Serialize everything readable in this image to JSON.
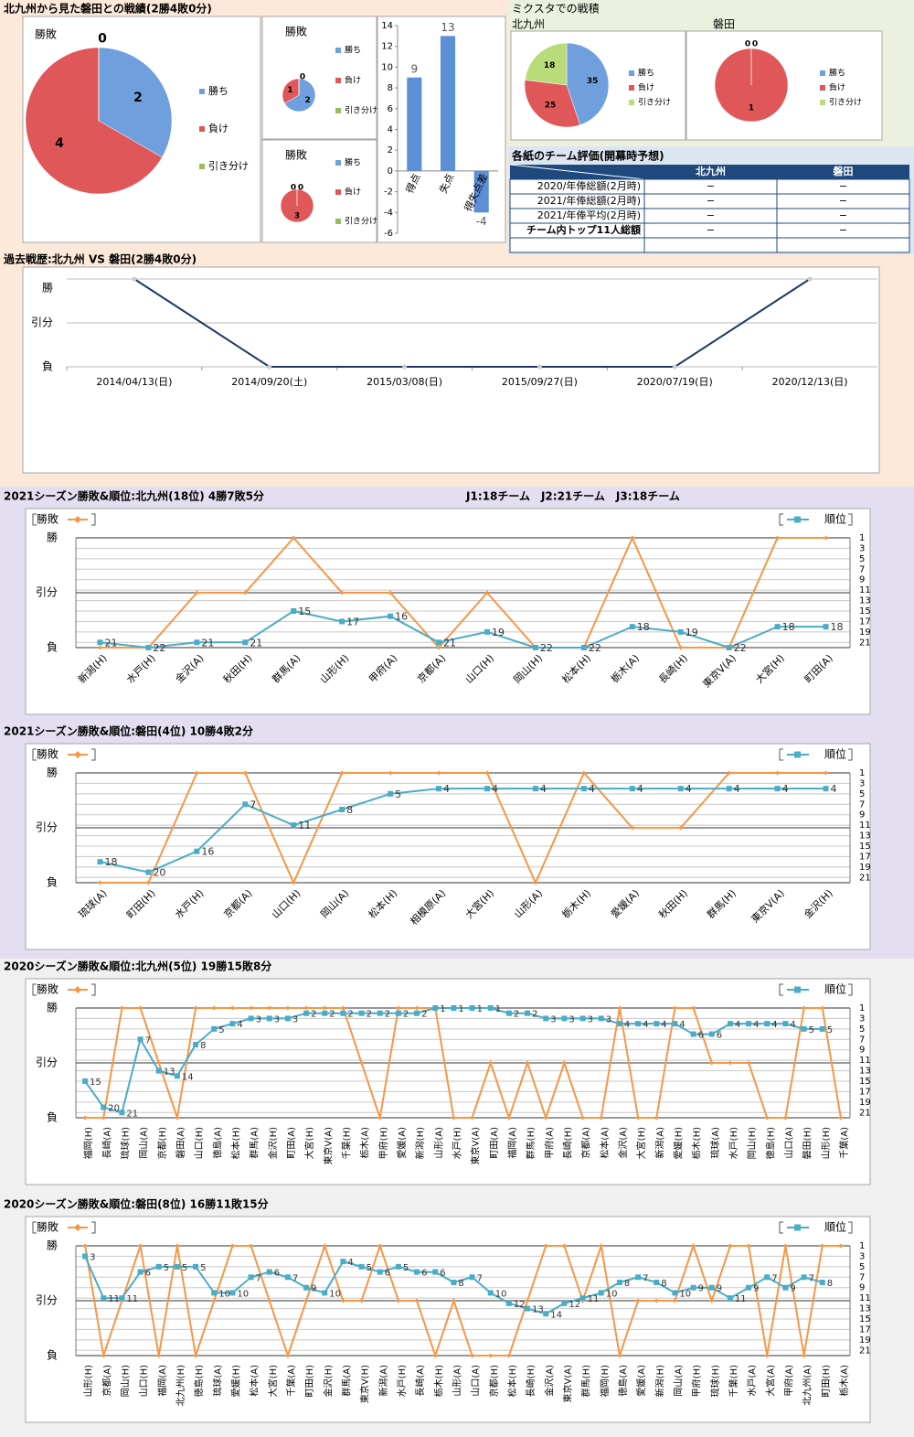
{
  "sections": {
    "h2h": "北九州から見た磐田との戦績(2勝4敗0分)",
    "mixta": "ミクスタでの戦積",
    "note": "J1:18チーム　J2:21チーム　J3:18チーム"
  },
  "table": {
    "title": "各紙のチーム評価(開幕時予想)",
    "columns": [
      "北九州",
      "磐田"
    ],
    "rows": [
      {
        "label": "2020/年俸総額(2月時)",
        "cells": [
          "−",
          "−"
        ]
      },
      {
        "label": "2021/年俸総額(2月時)",
        "cells": [
          "−",
          "−"
        ]
      },
      {
        "label": "2021/年俸平均(2月時)",
        "cells": [
          "−",
          "−"
        ]
      },
      {
        "label": "チーム内トップ11人総額",
        "cells": [
          "−",
          "−"
        ]
      }
    ]
  },
  "chart_data": [
    {
      "type": "pie",
      "title": "勝敗",
      "categories": [
        "勝ち",
        "負け",
        "引き分け"
      ],
      "values": [
        2,
        4,
        0
      ],
      "colors": [
        "#6f9fdc",
        "#e0575a",
        "#9bbb59"
      ]
    },
    {
      "type": "pie",
      "title": "勝敗",
      "categories": [
        "勝ち",
        "負け",
        "引き分け"
      ],
      "values": [
        2,
        1,
        0
      ],
      "colors": [
        "#6f9fdc",
        "#e0575a",
        "#9bbb59"
      ]
    },
    {
      "type": "pie",
      "title": "勝敗",
      "categories": [
        "勝ち",
        "負け",
        "引き分け"
      ],
      "values": [
        0,
        3,
        0
      ],
      "colors": [
        "#6f9fdc",
        "#e0575a",
        "#9bbb59"
      ]
    },
    {
      "type": "bar",
      "categories": [
        "得点",
        "失点",
        "得失点差"
      ],
      "values": [
        9,
        13,
        -4
      ],
      "color": "#5b8fd6",
      "ylim": [
        -6,
        14
      ],
      "yticks": [
        -6,
        -4,
        -2,
        0,
        2,
        4,
        6,
        8,
        10,
        12,
        14
      ]
    },
    {
      "type": "pie",
      "title": "北九州",
      "categories": [
        "勝ち",
        "負け",
        "引き分け"
      ],
      "values": [
        35,
        25,
        18
      ],
      "colors": [
        "#6f9fdc",
        "#e0575a",
        "#b8dc7a"
      ]
    },
    {
      "type": "pie",
      "title": "磐田",
      "categories": [
        "勝ち",
        "負け",
        "引き分け"
      ],
      "values": [
        0,
        1,
        0
      ],
      "colors": [
        "#6f9fdc",
        "#e0575a",
        "#b8dc7a"
      ]
    },
    {
      "type": "history",
      "title": "過去戦歴:北九州 VS 磐田(2勝4敗0分)",
      "categories": [
        "2014/04/13(日)",
        "2014/09/20(土)",
        "2015/03/08(日)",
        "2015/09/27(日)",
        "2020/07/19(日)",
        "2020/12/13(日)"
      ],
      "values": [
        1,
        -1,
        -1,
        -1,
        -1,
        1
      ],
      "color": "#1f3864",
      "ylim": [
        -1,
        1
      ],
      "yticks": [
        {
          "value": 1,
          "label": "勝"
        },
        {
          "value": 0,
          "label": "引分"
        },
        {
          "value": -1,
          "label": "負"
        }
      ]
    },
    {
      "type": "line",
      "title": "2021シーズン勝敗&順位:北九州(18位) 4勝7敗5分",
      "categories": [
        "新潟(H)",
        "水戸(H)",
        "金沢(A)",
        "秋田(H)",
        "群馬(A)",
        "山形(H)",
        "甲府(A)",
        "京都(A)",
        "山口(H)",
        "岡山(H)",
        "松本(H)",
        "栃木(A)",
        "長崎(H)",
        "東京V(A)",
        "大宮(H)",
        "町田(A)"
      ],
      "ylim": [
        -1,
        1
      ],
      "yticks": [
        {
          "value": 1,
          "label": "勝"
        },
        {
          "value": 0,
          "label": "引分"
        },
        {
          "value": -1,
          "label": "負"
        }
      ],
      "y2lim": [
        22,
        1
      ],
      "y2ticks": [
        1,
        3,
        5,
        7,
        9,
        11,
        13,
        15,
        17,
        19,
        21
      ],
      "series": [
        {
          "name": "勝敗",
          "color": "#f79646",
          "values": [
            -1,
            -1,
            0,
            0,
            1,
            0,
            0,
            -1,
            0,
            -1,
            -1,
            1,
            -1,
            -1,
            1,
            1
          ]
        },
        {
          "name": "順位",
          "color": "#4bacc6",
          "axis": "y2",
          "values": [
            21,
            22,
            21,
            21,
            15,
            17,
            16,
            21,
            19,
            22,
            22,
            18,
            19,
            22,
            18,
            18
          ]
        }
      ]
    },
    {
      "type": "line",
      "title": "2021シーズン勝敗&順位:磐田(4位) 10勝4敗2分",
      "categories": [
        "琉球(A)",
        "町田(H)",
        "水戸(H)",
        "京都(A)",
        "山口(H)",
        "岡山(A)",
        "松本(H)",
        "相模原(A)",
        "大宮(H)",
        "山形(A)",
        "栃木(H)",
        "愛媛(A)",
        "秋田(H)",
        "群馬(H)",
        "東京V(A)",
        "金沢(H)"
      ],
      "ylim": [
        -1,
        1
      ],
      "yticks": [
        {
          "value": 1,
          "label": "勝"
        },
        {
          "value": 0,
          "label": "引分"
        },
        {
          "value": -1,
          "label": "負"
        }
      ],
      "y2lim": [
        22,
        1
      ],
      "y2ticks": [
        1,
        3,
        5,
        7,
        9,
        11,
        13,
        15,
        17,
        19,
        21
      ],
      "series": [
        {
          "name": "勝敗",
          "color": "#f79646",
          "values": [
            -1,
            -1,
            1,
            1,
            -1,
            1,
            1,
            1,
            1,
            -1,
            1,
            0,
            0,
            1,
            1,
            1
          ]
        },
        {
          "name": "順位",
          "color": "#4bacc6",
          "axis": "y2",
          "values": [
            18,
            20,
            16,
            7,
            11,
            8,
            5,
            4,
            4,
            4,
            4,
            4,
            4,
            4,
            4,
            4
          ]
        }
      ]
    },
    {
      "type": "line",
      "title": "2020シーズン勝敗&順位:北九州(5位) 19勝15敗8分",
      "categories": [
        "福岡(H)",
        "長崎(A)",
        "琉球(H)",
        "岡山(A)",
        "京都(H)",
        "磐田(A)",
        "山口(H)",
        "徳島(A)",
        "松本(H)",
        "群馬(A)",
        "金沢(H)",
        "町田(A)",
        "大宮(H)",
        "東京V(A)",
        "千葉(H)",
        "栃木(A)",
        "甲府(H)",
        "愛媛(A)",
        "新潟(H)",
        "山形(A)",
        "水戸(H)",
        "東京V(A)",
        "町田(A)",
        "福岡(A)",
        "群馬(H)",
        "甲府(A)",
        "長崎(H)",
        "京都(A)",
        "松本(A)",
        "金沢(A)",
        "大宮(H)",
        "新潟(A)",
        "愛媛(H)",
        "栃木(H)",
        "琉球(A)",
        "水戸(H)",
        "岡山(H)",
        "徳島(H)",
        "山口(A)",
        "磐田(H)",
        "山形(H)",
        "千葉(A)"
      ],
      "ylim": [
        -1,
        1
      ],
      "yticks": [
        {
          "value": 1,
          "label": "勝"
        },
        {
          "value": 0,
          "label": "引分"
        },
        {
          "value": -1,
          "label": "負"
        }
      ],
      "y2lim": [
        22,
        1
      ],
      "y2ticks": [
        1,
        3,
        5,
        7,
        9,
        11,
        13,
        15,
        17,
        19,
        21
      ],
      "series": [
        {
          "name": "勝敗",
          "color": "#f79646",
          "values": [
            -1,
            -1,
            1,
            1,
            0,
            -1,
            1,
            1,
            1,
            1,
            1,
            1,
            1,
            1,
            1,
            0,
            -1,
            1,
            1,
            1,
            -1,
            -1,
            0,
            -1,
            0,
            -1,
            0,
            -1,
            -1,
            1,
            -1,
            -1,
            1,
            1,
            0,
            0,
            0,
            -1,
            -1,
            1,
            1,
            -1
          ]
        },
        {
          "name": "順位",
          "color": "#4bacc6",
          "axis": "y2",
          "values": [
            15,
            20,
            21,
            7,
            13,
            14,
            8,
            5,
            4,
            3,
            3,
            3,
            2,
            2,
            2,
            2,
            2,
            2,
            2,
            1,
            1,
            1,
            1,
            2,
            2,
            3,
            3,
            3,
            3,
            4,
            4,
            4,
            4,
            6,
            6,
            4,
            4,
            4,
            4,
            5,
            5,
            null
          ]
        }
      ]
    },
    {
      "type": "line",
      "title": "2020シーズン勝敗&順位:磐田(8位) 16勝11敗15分",
      "categories": [
        "山形(H)",
        "京都(A)",
        "岡山(H)",
        "山口(H)",
        "福岡(A)",
        "北九州(H)",
        "徳島(H)",
        "琉球(A)",
        "愛媛(H)",
        "松本(A)",
        "大宮(H)",
        "千葉(A)",
        "町田(H)",
        "金沢(H)",
        "群馬(A)",
        "東京V(H)",
        "新潟(A)",
        "水戸(H)",
        "長崎(A)",
        "栃木(H)",
        "山形(A)",
        "山口(A)",
        "京都(H)",
        "松本(H)",
        "長崎(H)",
        "金沢(A)",
        "東京V(A)",
        "群馬(H)",
        "福岡(H)",
        "徳島(A)",
        "愛媛(A)",
        "新潟(H)",
        "岡山(A)",
        "甲府(H)",
        "琉球(H)",
        "千葉(H)",
        "水戸(A)",
        "大宮(A)",
        "甲府(A)",
        "北九州(A)",
        "町田(H)",
        "栃木(A)"
      ],
      "ylim": [
        -1,
        1
      ],
      "yticks": [
        {
          "value": 1,
          "label": "勝"
        },
        {
          "value": 0,
          "label": "引分"
        },
        {
          "value": -1,
          "label": "負"
        }
      ],
      "y2lim": [
        22,
        1
      ],
      "y2ticks": [
        1,
        3,
        5,
        7,
        9,
        11,
        13,
        15,
        17,
        19,
        21
      ],
      "series": [
        {
          "name": "勝敗",
          "color": "#f79646",
          "values": [
            1,
            -1,
            0,
            1,
            -1,
            1,
            -1,
            0,
            1,
            1,
            0,
            -1,
            0,
            1,
            0,
            0,
            1,
            0,
            0,
            -1,
            0,
            -1,
            -1,
            -1,
            0,
            1,
            1,
            0,
            1,
            -1,
            0,
            0,
            0,
            1,
            0,
            1,
            1,
            -1,
            1,
            -1,
            1,
            1
          ]
        },
        {
          "name": "順位",
          "color": "#4bacc6",
          "axis": "y2",
          "values": [
            3,
            11,
            11,
            6,
            5,
            5,
            5,
            10,
            10,
            7,
            6,
            7,
            9,
            10,
            4,
            5,
            6,
            5,
            6,
            6,
            8,
            7,
            10,
            12,
            13,
            14,
            12,
            11,
            10,
            8,
            7,
            8,
            10,
            9,
            9,
            11,
            9,
            7,
            9,
            7,
            8,
            null
          ]
        }
      ]
    }
  ]
}
